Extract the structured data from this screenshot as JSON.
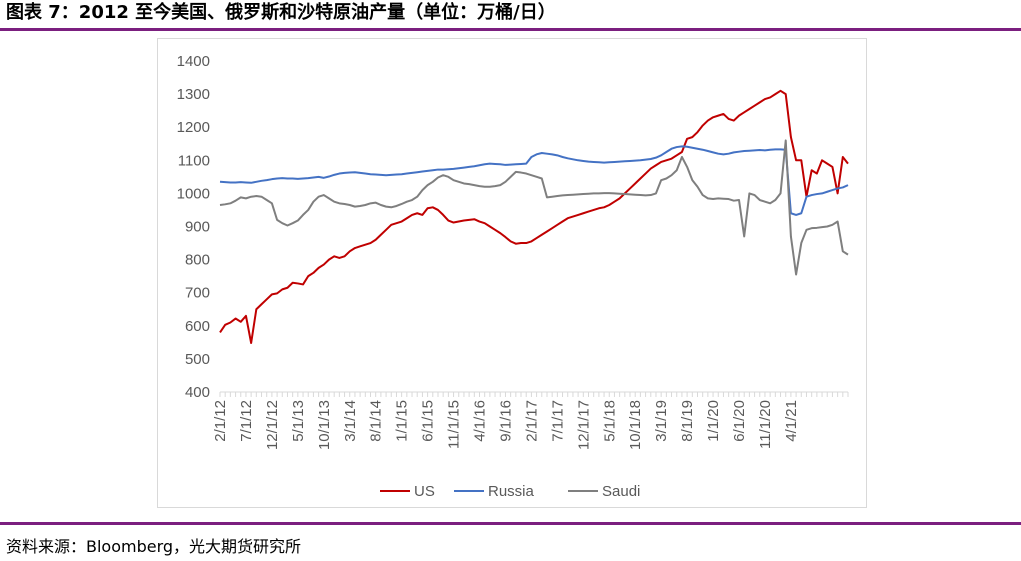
{
  "figure_title": "图表 7：2012 至今美国、俄罗斯和沙特原油产量（单位：万桶/日）",
  "source": "资料来源：Bloomberg，光大期货研究所",
  "rule_color": "#7b1f7f",
  "chart_data": {
    "type": "line",
    "title": "",
    "xlabel": "",
    "ylabel": "",
    "ylim": [
      400,
      1400
    ],
    "yticks": [
      400,
      500,
      600,
      700,
      800,
      900,
      1000,
      1100,
      1200,
      1300,
      1400
    ],
    "x_start": "2/1/12",
    "x_end": "4/1/21",
    "x_tick_labels": [
      "2/1/12",
      "7/1/12",
      "12/1/12",
      "5/1/13",
      "10/1/13",
      "3/1/14",
      "8/1/14",
      "1/1/15",
      "6/1/15",
      "11/1/15",
      "4/1/16",
      "9/1/16",
      "2/1/17",
      "7/1/17",
      "12/1/17",
      "5/1/18",
      "10/1/18",
      "3/1/19",
      "8/1/19",
      "1/1/20",
      "6/1/20",
      "11/1/20",
      "4/1/21"
    ],
    "grid": false,
    "legend": "bottom",
    "series": [
      {
        "name": "US",
        "color": "#c00000",
        "values": [
          580,
          603,
          610,
          622,
          612,
          630,
          548,
          650,
          665,
          680,
          695,
          698,
          710,
          715,
          730,
          728,
          725,
          750,
          760,
          775,
          785,
          800,
          810,
          805,
          810,
          825,
          835,
          840,
          845,
          850,
          860,
          875,
          890,
          905,
          910,
          915,
          925,
          935,
          940,
          935,
          955,
          958,
          950,
          935,
          918,
          912,
          915,
          918,
          920,
          922,
          915,
          910,
          900,
          890,
          880,
          868,
          855,
          848,
          850,
          850,
          855,
          865,
          875,
          885,
          895,
          905,
          915,
          925,
          930,
          935,
          940,
          945,
          950,
          955,
          958,
          965,
          975,
          985,
          1000,
          1015,
          1030,
          1045,
          1060,
          1075,
          1085,
          1095,
          1100,
          1105,
          1115,
          1125,
          1165,
          1170,
          1185,
          1205,
          1220,
          1230,
          1235,
          1240,
          1225,
          1220,
          1235,
          1245,
          1255,
          1265,
          1275,
          1285,
          1290,
          1300,
          1310,
          1300,
          1170,
          1100,
          1100,
          990,
          1070,
          1060,
          1100,
          1090,
          1080,
          1000,
          1110,
          1090
        ]
      },
      {
        "name": "Russia",
        "color": "#4472c4",
        "values": [
          1035,
          1034,
          1033,
          1033,
          1034,
          1033,
          1032,
          1035,
          1038,
          1040,
          1043,
          1045,
          1046,
          1045,
          1045,
          1044,
          1045,
          1046,
          1048,
          1050,
          1047,
          1051,
          1056,
          1060,
          1062,
          1063,
          1064,
          1062,
          1060,
          1058,
          1057,
          1056,
          1055,
          1056,
          1057,
          1058,
          1060,
          1062,
          1064,
          1066,
          1068,
          1070,
          1072,
          1072,
          1073,
          1074,
          1076,
          1078,
          1080,
          1082,
          1085,
          1088,
          1090,
          1089,
          1088,
          1086,
          1087,
          1088,
          1089,
          1090,
          1110,
          1118,
          1122,
          1120,
          1118,
          1115,
          1110,
          1106,
          1103,
          1100,
          1098,
          1096,
          1095,
          1094,
          1093,
          1094,
          1095,
          1096,
          1097,
          1098,
          1099,
          1100,
          1102,
          1104,
          1108,
          1115,
          1125,
          1135,
          1140,
          1142,
          1141,
          1138,
          1135,
          1132,
          1128,
          1124,
          1120,
          1118,
          1120,
          1124,
          1126,
          1128,
          1129,
          1130,
          1131,
          1130,
          1132,
          1133,
          1133,
          1132,
          940,
          935,
          940,
          990,
          995,
          998,
          1000,
          1005,
          1010,
          1015,
          1018,
          1025
        ]
      },
      {
        "name": "Saudi",
        "color": "#7f7f7f",
        "values": [
          965,
          967,
          970,
          978,
          988,
          985,
          990,
          992,
          990,
          980,
          970,
          920,
          910,
          903,
          910,
          918,
          935,
          950,
          975,
          990,
          995,
          985,
          975,
          970,
          968,
          965,
          960,
          962,
          965,
          970,
          972,
          965,
          960,
          958,
          962,
          968,
          975,
          980,
          990,
          1010,
          1025,
          1035,
          1048,
          1055,
          1050,
          1040,
          1035,
          1030,
          1028,
          1025,
          1022,
          1020,
          1020,
          1022,
          1025,
          1035,
          1050,
          1065,
          1063,
          1060,
          1055,
          1050,
          1045,
          988,
          990,
          992,
          994,
          995,
          996,
          997,
          998,
          999,
          1000,
          1000,
          1001,
          1001,
          1000,
          999,
          998,
          997,
          996,
          995,
          994,
          995,
          1000,
          1040,
          1045,
          1055,
          1070,
          1110,
          1080,
          1040,
          1020,
          995,
          985,
          983,
          985,
          984,
          983,
          978,
          980,
          870,
          1000,
          995,
          980,
          975,
          970,
          980,
          1000,
          1160,
          870,
          755,
          850,
          890,
          895,
          896,
          898,
          900,
          905,
          915,
          825,
          815
        ]
      }
    ]
  }
}
